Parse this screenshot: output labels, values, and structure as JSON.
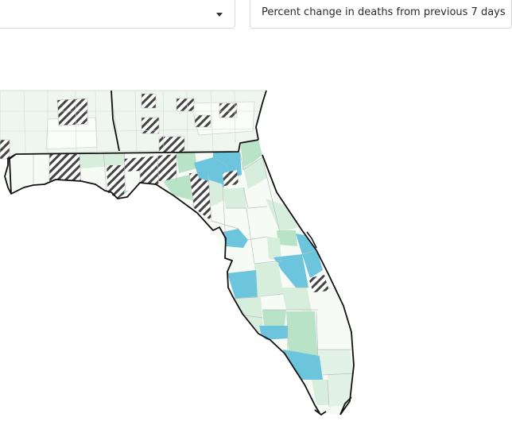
{
  "filters": {
    "left_dropdown": {
      "value": "",
      "icon": "chevron-down-icon"
    },
    "right_dropdown": {
      "value": "Percent change in deaths from previous 7 days"
    }
  },
  "map": {
    "region": "Florida and neighboring Alabama / Georgia counties",
    "fill_colors": {
      "very_light_green": "#eef6ef",
      "light_green": "#d7eedd",
      "medium_green": "#b9e3c6",
      "blue": "#6cc5dd",
      "near_white": "#f7fbf6",
      "hatched_stripe": "#444444",
      "county_border": "#bfbfbf",
      "state_border": "#111111"
    }
  }
}
